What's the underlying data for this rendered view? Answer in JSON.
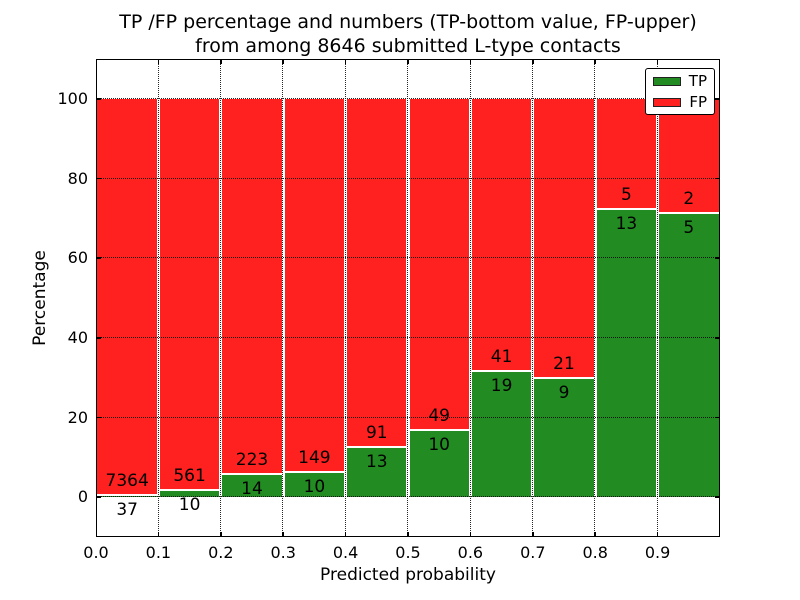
{
  "chart_data": {
    "type": "bar",
    "stacked": true,
    "title": "TP /FP percentage and numbers (TP-bottom value, FP-upper) from among 8646 submitted L-type contacts",
    "title_lines": [
      "TP /FP percentage and numbers (TP-bottom value, FP-upper)",
      "from among 8646 submitted L-type contacts"
    ],
    "xlabel": "Predicted probability",
    "ylabel": "Percentage",
    "xlim": [
      0.0,
      1.0
    ],
    "ylim": [
      -10,
      110
    ],
    "grid": true,
    "grid_style": "dotted",
    "bar_bin_width": 0.1,
    "total_contacts": 8646,
    "categories": [
      "0.0-0.1",
      "0.1-0.2",
      "0.2-0.3",
      "0.3-0.4",
      "0.4-0.5",
      "0.5-0.6",
      "0.6-0.7",
      "0.7-0.8",
      "0.8-0.9",
      "0.9-1.0"
    ],
    "series": [
      {
        "name": "TP",
        "color": "#228b22",
        "counts": [
          37,
          10,
          14,
          10,
          13,
          10,
          19,
          9,
          13,
          5
        ]
      },
      {
        "name": "FP",
        "color": "#ff2020",
        "counts": [
          7364,
          561,
          223,
          149,
          91,
          49,
          41,
          21,
          5,
          2
        ]
      }
    ],
    "x_ticks": [
      {
        "value": 0.0,
        "label": "0.0"
      },
      {
        "value": 0.1,
        "label": "0.1"
      },
      {
        "value": 0.2,
        "label": "0.2"
      },
      {
        "value": 0.3,
        "label": "0.3"
      },
      {
        "value": 0.4,
        "label": "0.4"
      },
      {
        "value": 0.5,
        "label": "0.5"
      },
      {
        "value": 0.6,
        "label": "0.6"
      },
      {
        "value": 0.7,
        "label": "0.7"
      },
      {
        "value": 0.8,
        "label": "0.8"
      },
      {
        "value": 0.9,
        "label": "0.9"
      }
    ],
    "y_ticks": [
      {
        "value": 0,
        "label": "0"
      },
      {
        "value": 20,
        "label": "20"
      },
      {
        "value": 40,
        "label": "40"
      },
      {
        "value": 60,
        "label": "60"
      },
      {
        "value": 80,
        "label": "80"
      },
      {
        "value": 100,
        "label": "100"
      }
    ],
    "legend": {
      "position": "upper right",
      "entries": [
        {
          "label": "TP",
          "color": "#228b22"
        },
        {
          "label": "FP",
          "color": "#ff2020"
        }
      ]
    }
  }
}
